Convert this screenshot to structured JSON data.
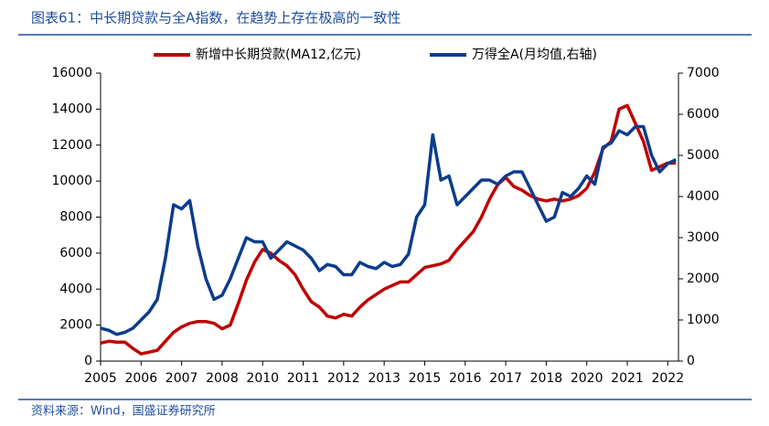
{
  "chart_data": {
    "type": "line",
    "title": "图表61：中长期贷款与全A指数，在趋势上存在极高的一致性",
    "source": "资料来源：Wind，国盛证券研究所",
    "x": [
      2005,
      2005.25,
      2005.5,
      2005.75,
      2006,
      2006.25,
      2006.5,
      2006.75,
      2007,
      2007.25,
      2007.5,
      2007.75,
      2008,
      2008.25,
      2008.5,
      2008.75,
      2009,
      2009.25,
      2009.5,
      2009.75,
      2010,
      2010.25,
      2010.5,
      2010.75,
      2011,
      2011.25,
      2011.5,
      2011.75,
      2012,
      2012.25,
      2012.5,
      2012.75,
      2013,
      2013.25,
      2013.5,
      2013.75,
      2014,
      2014.25,
      2014.5,
      2014.75,
      2015,
      2015.25,
      2015.5,
      2015.75,
      2016,
      2016.25,
      2016.5,
      2016.75,
      2017,
      2017.25,
      2017.5,
      2017.75,
      2018,
      2018.25,
      2018.5,
      2018.75,
      2019,
      2019.25,
      2019.5,
      2019.75,
      2020,
      2020.25,
      2020.5,
      2020.75,
      2021,
      2021.25,
      2021.5,
      2021.75,
      2022,
      2022.25,
      2022.5,
      2022.75
    ],
    "series": [
      {
        "name": "新增中长期贷款(MA12,亿元)",
        "color": "#c00000",
        "axis": "y",
        "values": [
          1000,
          1100,
          1050,
          1050,
          700,
          400,
          500,
          600,
          1100,
          1600,
          1900,
          2100,
          2200,
          2200,
          2100,
          1800,
          2000,
          3200,
          4500,
          5500,
          6200,
          6000,
          5600,
          5300,
          4800,
          4000,
          3300,
          3000,
          2500,
          2400,
          2600,
          2500,
          3000,
          3400,
          3700,
          4000,
          4200,
          4400,
          4400,
          4800,
          5200,
          5300,
          5400,
          5600,
          6200,
          6700,
          7200,
          8000,
          9000,
          9800,
          10200,
          9700,
          9500,
          9200,
          9000,
          8900,
          9000,
          8900,
          9000,
          9200,
          9600,
          10500,
          11800,
          12200,
          14000,
          14200,
          13200,
          12200,
          10600,
          10800,
          11000,
          11000
        ]
      },
      {
        "name": "万得全A(月均值,右轴)",
        "color": "#0c3c8c",
        "axis": "y2",
        "values": [
          800,
          750,
          650,
          700,
          800,
          1000,
          1200,
          1500,
          2500,
          3800,
          3700,
          3900,
          2800,
          2000,
          1500,
          1600,
          2000,
          2500,
          3000,
          2900,
          2900,
          2500,
          2700,
          2900,
          2800,
          2700,
          2500,
          2200,
          2350,
          2300,
          2100,
          2100,
          2400,
          2300,
          2250,
          2400,
          2300,
          2350,
          2600,
          3500,
          3800,
          5500,
          4400,
          4500,
          3800,
          4000,
          4200,
          4400,
          4400,
          4300,
          4500,
          4600,
          4600,
          4200,
          3800,
          3400,
          3500,
          4100,
          4000,
          4200,
          4500,
          4300,
          5200,
          5300,
          5600,
          5500,
          5700,
          5700,
          5000,
          4600,
          4800,
          4900
        ]
      }
    ],
    "xlim": [
      2005,
      2022.83
    ],
    "xticks": [
      {
        "value": 2005,
        "label": "2005"
      },
      {
        "value": 2006.25,
        "label": "2006"
      },
      {
        "value": 2007.5,
        "label": "2007"
      },
      {
        "value": 2008.75,
        "label": "2008"
      },
      {
        "value": 2010,
        "label": "2010"
      },
      {
        "value": 2011.25,
        "label": "2011"
      },
      {
        "value": 2012.5,
        "label": "2012"
      },
      {
        "value": 2013.75,
        "label": "2013"
      },
      {
        "value": 2015,
        "label": "2015"
      },
      {
        "value": 2016.25,
        "label": "2016"
      },
      {
        "value": 2017.5,
        "label": "2017"
      },
      {
        "value": 2018.75,
        "label": "2018"
      },
      {
        "value": 2020,
        "label": "2020"
      },
      {
        "value": 2021.25,
        "label": "2021"
      },
      {
        "value": 2022.5,
        "label": "2022"
      }
    ],
    "ylim": [
      0,
      16000
    ],
    "yticks": [
      0,
      2000,
      4000,
      6000,
      8000,
      10000,
      12000,
      14000,
      16000
    ],
    "y2lim": [
      0,
      7000
    ],
    "y2ticks": [
      0,
      1000,
      2000,
      3000,
      4000,
      5000,
      6000,
      7000
    ],
    "grid": false
  }
}
